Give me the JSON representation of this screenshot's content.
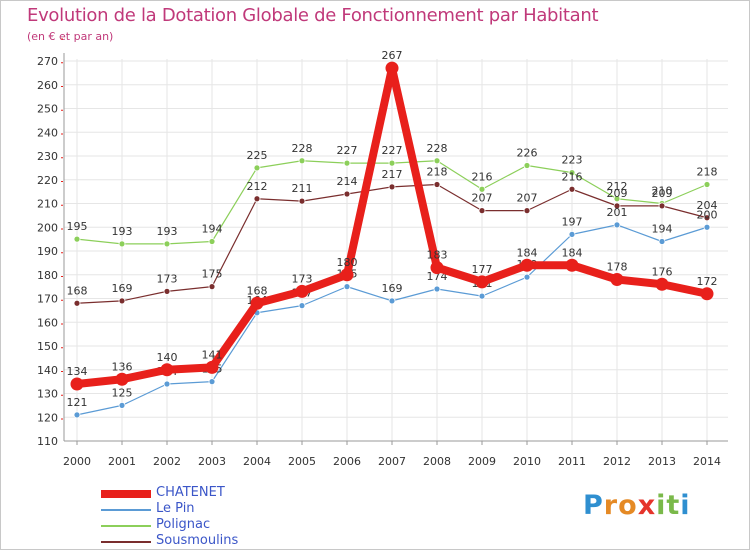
{
  "title": "Evolution de la Dotation Globale de Fonctionnement par Habitant",
  "subtitle": "(en € et par an)",
  "logo": {
    "letters": [
      "P",
      "r",
      "o",
      "x",
      "i",
      "t",
      "i"
    ],
    "colors": [
      "#2f8fd0",
      "#e58a25",
      "#e58a25",
      "#e5342b",
      "#7ab94a",
      "#7ab94a",
      "#2f8fd0"
    ]
  },
  "chart_data": {
    "type": "line",
    "title": "Evolution de la Dotation Globale de Fonctionnement par Habitant",
    "subtitle": "(en € et par an)",
    "xlabel": "",
    "ylabel": "",
    "ylim": [
      110,
      270
    ],
    "yticks": [
      "110",
      "120",
      "130",
      "140",
      "150",
      "160",
      "170",
      "180",
      "190",
      "200",
      "210",
      "220",
      "230",
      "240",
      "250",
      "260",
      "270"
    ],
    "categories": [
      "2000",
      "2001",
      "2002",
      "2003",
      "2004",
      "2005",
      "2006",
      "2007",
      "2008",
      "2009",
      "2010",
      "2011",
      "2012",
      "2013",
      "2014"
    ],
    "grid": true,
    "series": [
      {
        "name": "Polignac",
        "color": "#8ccf5a",
        "values": [
          195,
          193,
          193,
          194,
          225,
          228,
          227,
          227,
          228,
          216,
          226,
          223,
          212,
          210,
          218
        ],
        "labels": [
          "195",
          "193",
          "193",
          "194",
          "225",
          "228",
          "227",
          "227",
          "228",
          "216",
          "226",
          "223",
          "212",
          "210",
          "218"
        ]
      },
      {
        "name": "Sousmoulins",
        "color": "#7a2e2e",
        "values": [
          168,
          169,
          173,
          175,
          212,
          211,
          214,
          217,
          218,
          207,
          207,
          216,
          209,
          209,
          204
        ],
        "labels": [
          "168",
          "169",
          "173",
          "175",
          "212",
          "211",
          "214",
          "217",
          "218",
          "207",
          "207",
          "216",
          "209",
          "209",
          "204"
        ]
      },
      {
        "name": "Le Pin",
        "color": "#5b9bd5",
        "values": [
          121,
          125,
          134,
          135,
          164,
          167,
          175,
          169,
          174,
          171,
          179,
          197,
          201,
          194,
          200
        ],
        "labels": [
          "121",
          "125",
          "134",
          "135",
          "164",
          "167",
          "175",
          "169",
          "174",
          "171",
          "179",
          "197",
          "201",
          "194",
          "200"
        ]
      },
      {
        "name": "CHATENET",
        "color": "#e8201b",
        "values": [
          134,
          136,
          140,
          141,
          168,
          173,
          180,
          267,
          183,
          177,
          184,
          184,
          178,
          176,
          172
        ],
        "labels": [
          "134",
          "136",
          "140",
          "141",
          "168",
          "173",
          "180",
          "267",
          "183",
          "177",
          "184",
          "184",
          "178",
          "176",
          "172"
        ]
      }
    ],
    "legend_order": [
      "CHATENET",
      "Le Pin",
      "Polignac",
      "Sousmoulins"
    ],
    "legend_position": "bottom-left"
  }
}
